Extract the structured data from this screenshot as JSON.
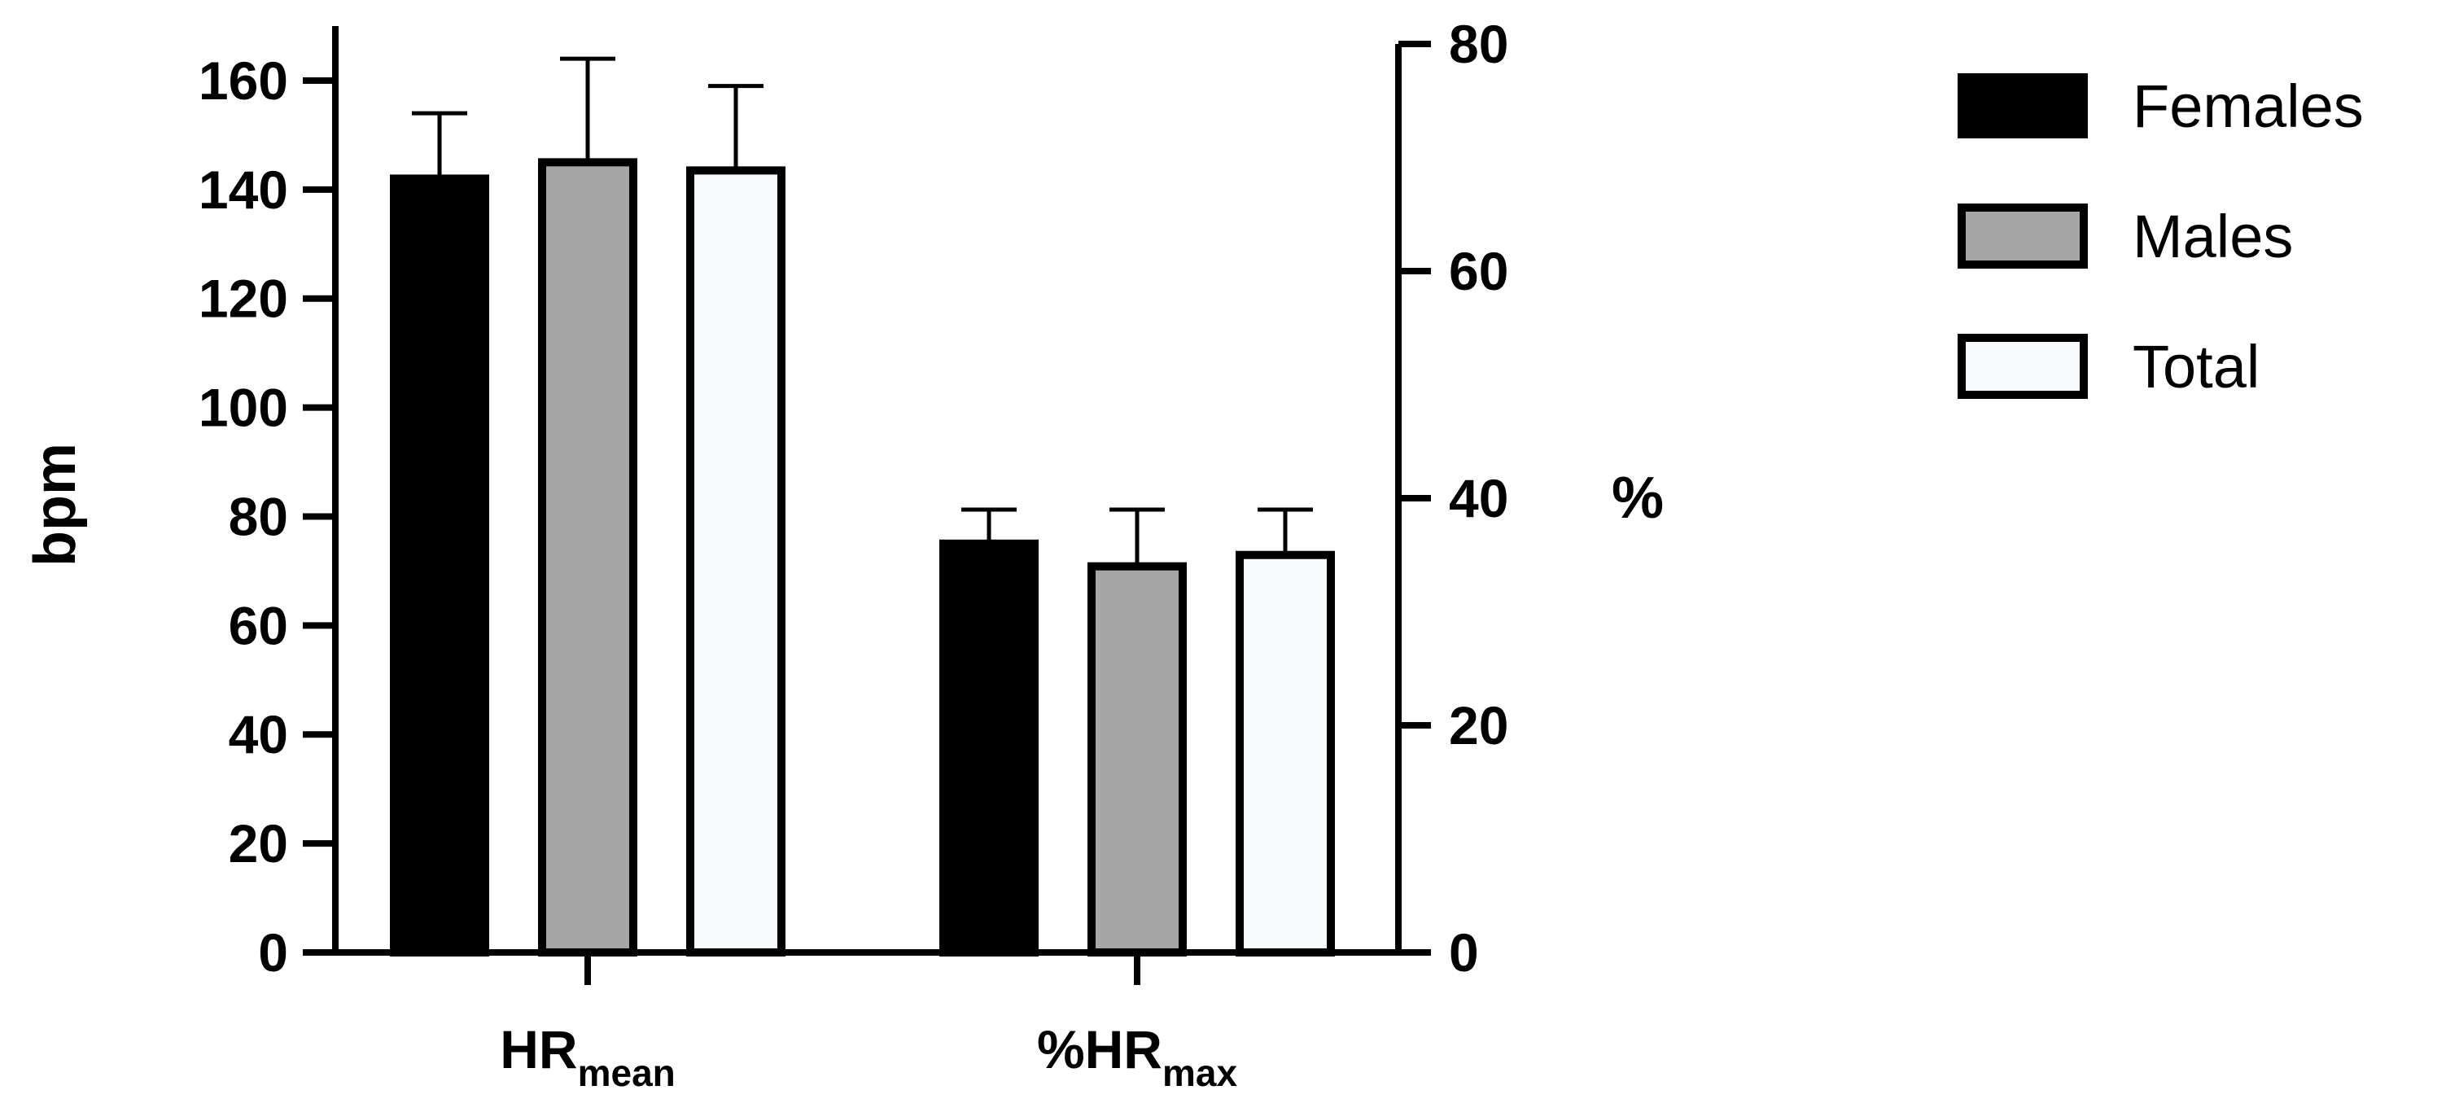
{
  "chart_data": {
    "type": "bar",
    "categories": [
      {
        "main": "HR",
        "sub": "mean",
        "axis": "left"
      },
      {
        "main": "%HR",
        "sub": "max",
        "axis": "right"
      }
    ],
    "series": [
      {
        "name": "Females",
        "color": "#000000",
        "values": [
          142,
          36
        ],
        "errors": [
          12,
          3
        ]
      },
      {
        "name": "Males",
        "color": "#a6a6a6",
        "values": [
          145,
          34
        ],
        "errors": [
          19,
          5
        ]
      },
      {
        "name": "Total",
        "color": "#f7fbfb",
        "values": [
          143.5,
          35
        ],
        "errors": [
          15.5,
          4
        ]
      }
    ],
    "y_left": {
      "label": "bpm",
      "ylim": [
        0,
        170
      ],
      "ticks": [
        "0",
        "20",
        "40",
        "60",
        "80",
        "100",
        "120",
        "140",
        "160"
      ]
    },
    "y_right": {
      "label": "%",
      "ylim": [
        0,
        80
      ],
      "ticks": [
        "0",
        "20",
        "40",
        "60",
        "80"
      ]
    },
    "legend_position": "top-right",
    "grid": false
  }
}
